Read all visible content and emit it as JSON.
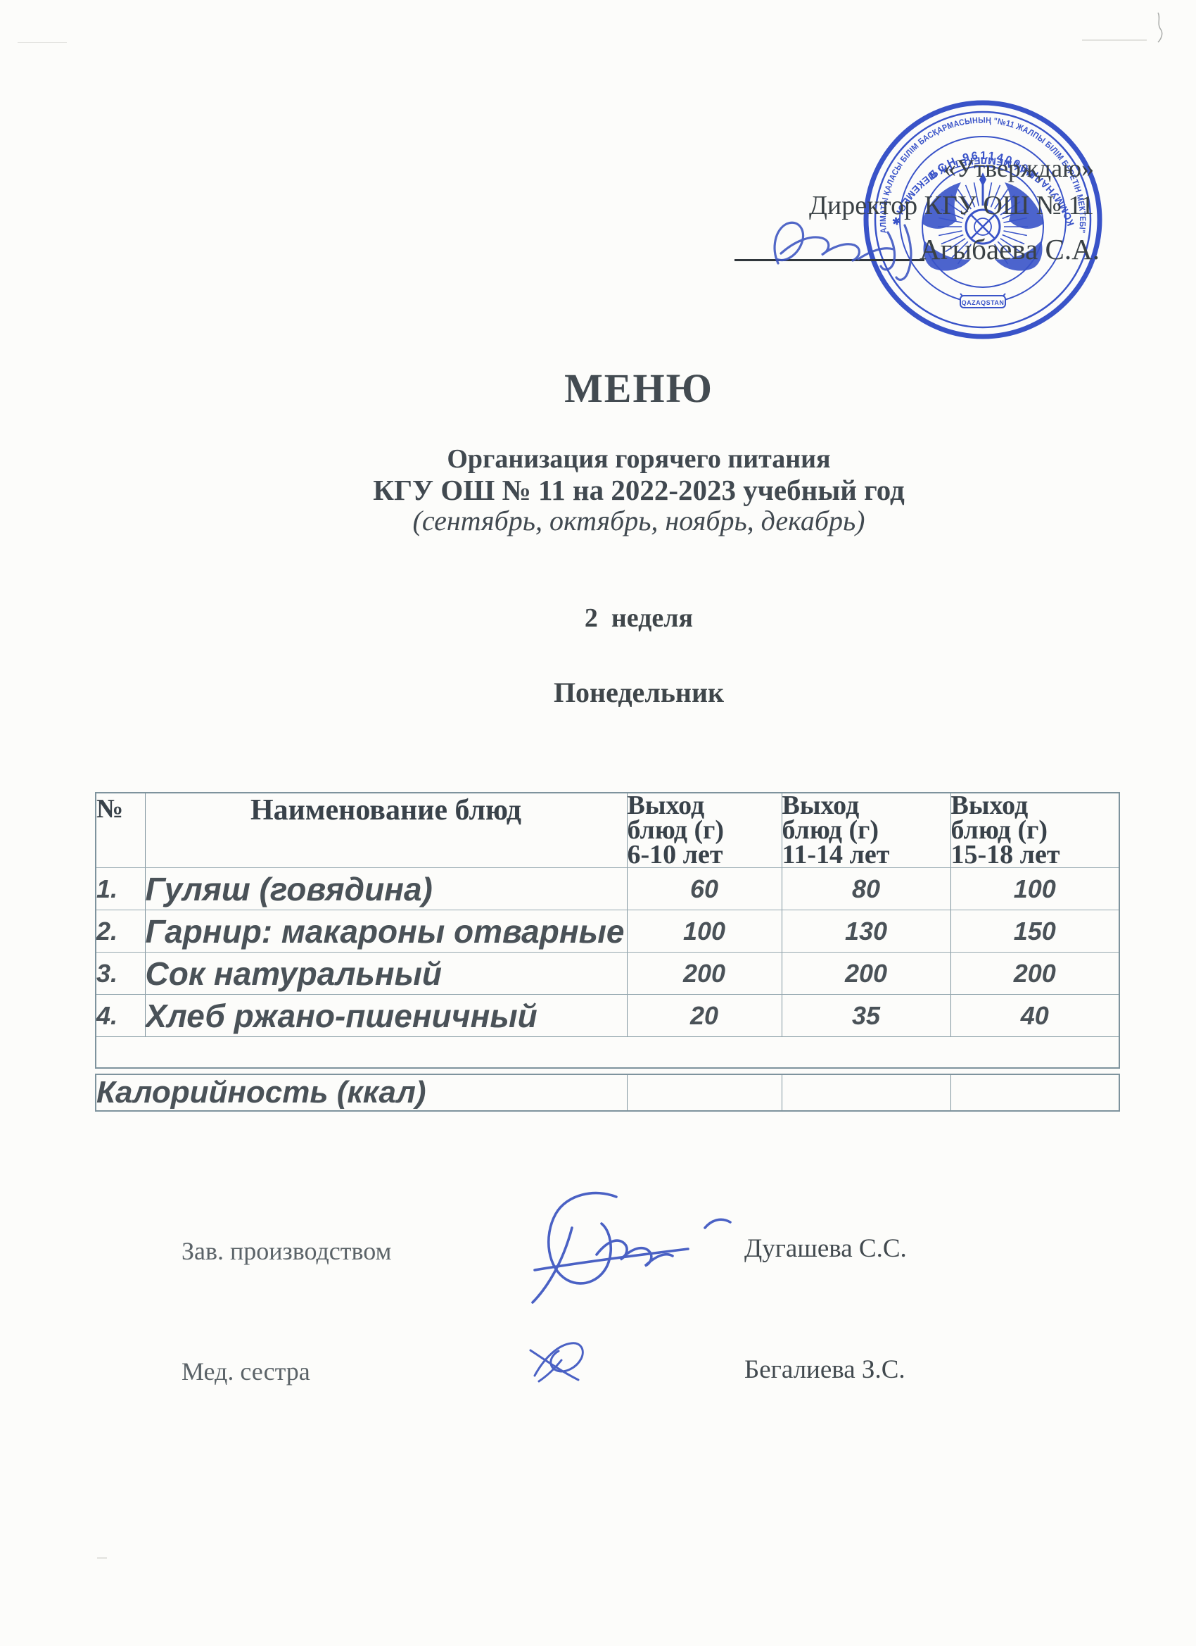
{
  "approval": {
    "approve_label": "«Утверждаю»",
    "director_line": "Директор КГУ ОШ № 11",
    "director_name": "Агыбаева С.А."
  },
  "stamp": {
    "ring_text_top": "АЛМАТЫ ҚАЛАСЫ БІЛІМ БАСҚАРМАСЫНЫҢ \"№11 ЖАЛПЫ БІЛІМ БЕРЕТІН МЕКТЕБІ\"",
    "ring_text_bottom": "КОММУНАЛДЫҚ МЕМЛЕКЕТТІК МЕКЕМЕСІ ✱",
    "bin_text": "БСН 961140000",
    "center_label": "QAZAQSTAN",
    "ink_color": "#2945c4"
  },
  "title": "МЕНЮ",
  "subtitle_line1": "Организация горячего питания",
  "subtitle_line2": "КГУ ОШ № 11 на 2022-2023 учебный год",
  "subtitle_line3": "(сентябрь, октябрь, ноябрь, декабрь)",
  "week_label": "2  неделя",
  "day_label": "Понедельник",
  "menu_table": {
    "col_headers": {
      "num": "№",
      "name": "Наименование блюд",
      "out1": [
        "Выход",
        "блюд (г)",
        "6-10 лет"
      ],
      "out2": [
        "Выход",
        "блюд (г)",
        "11-14 лет"
      ],
      "out3": [
        "Выход",
        "блюд (г)",
        "15-18 лет"
      ]
    },
    "rows": [
      {
        "num": "1.",
        "name": "Гуляш (говядина)",
        "v1": "60",
        "v2": "80",
        "v3": "100"
      },
      {
        "num": "2.",
        "name": "Гарнир: макароны отварные",
        "v1": "100",
        "v2": "130",
        "v3": "150"
      },
      {
        "num": "3.",
        "name": "Сок натуральный",
        "v1": "200",
        "v2": "200",
        "v3": "200"
      },
      {
        "num": "4.",
        "name": "Хлеб ржано-пшеничный",
        "v1": "20",
        "v2": "35",
        "v3": "40"
      }
    ],
    "calories_label": "Калорийность (ккал)"
  },
  "signoff": {
    "role1": "Зав. производством",
    "name1": "Дугашева С.С.",
    "role2": "Мед. сестра",
    "name2": "Бегалиева З.С."
  }
}
